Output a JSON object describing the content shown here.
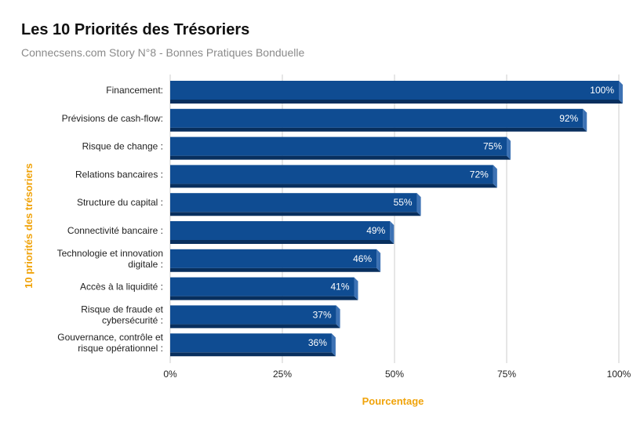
{
  "title": "Les 10 Priorités des Trésoriers",
  "subtitle": "Connecsens.com Story N°8 - Bonnes Pratiques Bonduelle",
  "colors": {
    "bar_front": "#0f4c92",
    "bar_bottom": "#082f5e",
    "bar_side": "#3d72b4",
    "grid": "#cccccc",
    "axis_title": "#f0a30a"
  },
  "chart_data": {
    "type": "bar",
    "orientation": "horizontal",
    "style": "3d",
    "title": "Les 10 Priorités des Trésoriers",
    "subtitle": "Connecsens.com Story N°8 - Bonnes Pratiques Bonduelle",
    "xlabel": "Pourcentage",
    "ylabel": "10 priorités des trésoriers",
    "xlim": [
      0,
      100
    ],
    "xticks": [
      "0%",
      "25%",
      "50%",
      "75%",
      "100%"
    ],
    "grid": true,
    "legend": "none",
    "categories": [
      [
        "Financement:"
      ],
      [
        "Prévisions de cash-flow:"
      ],
      [
        "Risque de change :"
      ],
      [
        "Relations bancaires :"
      ],
      [
        "Structure du capital :"
      ],
      [
        "Connectivité bancaire :"
      ],
      [
        "Technologie et innovation",
        "digitale :"
      ],
      [
        "Accès à la liquidité :"
      ],
      [
        "Risque de fraude et",
        "cybersécurité :"
      ],
      [
        "Gouvernance, contrôle et",
        "risque opérationnel :"
      ]
    ],
    "values": [
      100,
      92,
      75,
      72,
      55,
      49,
      46,
      41,
      37,
      36
    ],
    "value_labels": [
      "100%",
      "92%",
      "75%",
      "72%",
      "55%",
      "49%",
      "46%",
      "41%",
      "37%",
      "36%"
    ]
  }
}
